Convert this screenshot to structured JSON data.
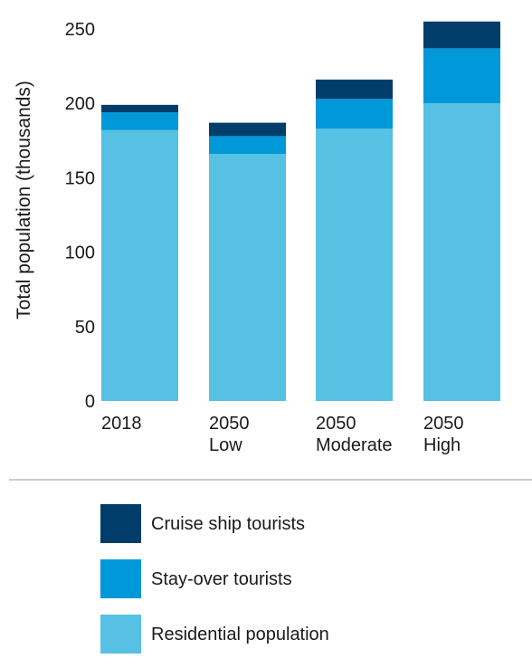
{
  "chart_data": {
    "type": "bar",
    "stacked": true,
    "categories": [
      [
        "2018"
      ],
      [
        "2050",
        "Low"
      ],
      [
        "2050",
        "Moderate"
      ],
      [
        "2050",
        "High"
      ]
    ],
    "series": [
      {
        "name": "Residential population",
        "color": "#56c1e3",
        "values": [
          182,
          166,
          183,
          200
        ]
      },
      {
        "name": "Stay-over tourists",
        "color": "#0098d8",
        "values": [
          12,
          12,
          20,
          37
        ]
      },
      {
        "name": "Cruise ship tourists",
        "color": "#003d6b",
        "values": [
          5,
          9,
          13,
          18
        ]
      }
    ],
    "legend_order": [
      "Cruise ship tourists",
      "Stay-over tourists",
      "Residential population"
    ],
    "ylabel": "Total population (thousands)",
    "xlabel": "",
    "ylim": [
      0,
      250
    ],
    "yticks": [
      0,
      50,
      100,
      150,
      200,
      250
    ],
    "grid": false,
    "legend_position": "bottom"
  }
}
